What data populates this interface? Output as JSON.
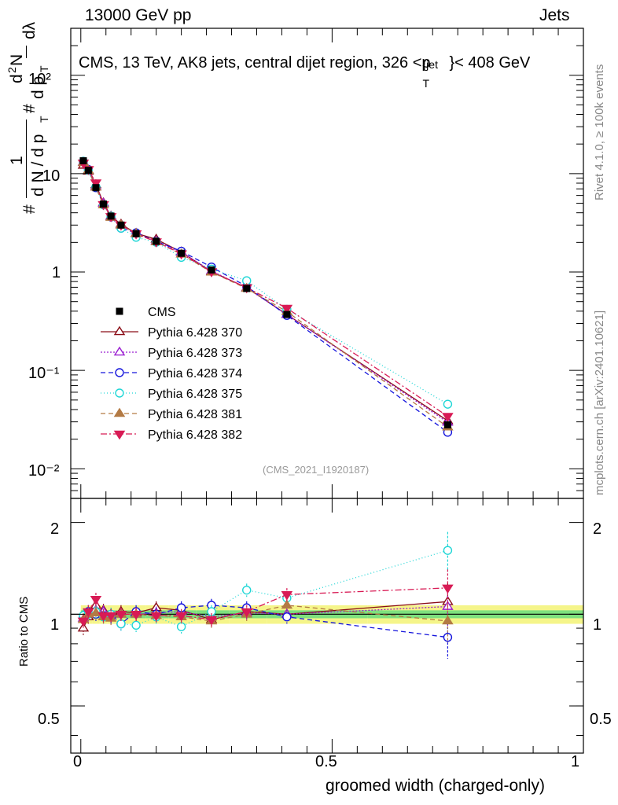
{
  "header": {
    "energy_label": "13000 GeV pp",
    "category_label": "Jets",
    "plot_title": "CMS, 13 TeV, AK8 jets, central dijet region, 326 <p",
    "plot_title_sup": "{jet",
    "plot_title_sub": "T",
    "plot_title_end": "}< 408 GeV",
    "rivet_label": "Rivet 4.1.0, ≥ 100k events",
    "mcplots_label": "mcplots.cern.ch [arXiv:2401.10621]",
    "analysis_id": "(CMS_2021_I1920187)"
  },
  "axes": {
    "xlabel": "groomed width (charged-only)",
    "main_ylabel_parts": [
      "#",
      "1",
      "d N / d p",
      "T",
      "#",
      "d p",
      "T",
      "d",
      "2",
      "N",
      "dλ"
    ],
    "ratio_ylabel": "Ratio to CMS",
    "x_ticks": [
      "0",
      "0.5",
      "1"
    ],
    "main_y_ticks": [
      "10⁻²",
      "10⁻¹",
      "1",
      "10",
      "10²"
    ],
    "ratio_y_ticks": [
      "0.5",
      "1",
      "2"
    ]
  },
  "chart_data": {
    "type": "scatter",
    "main": {
      "yscale": "log",
      "xlim": [
        -0.02,
        1.0
      ],
      "ylim": [
        0.005,
        300
      ]
    },
    "ratio": {
      "yscale": "log",
      "ylim": [
        0.35,
        2.4
      ],
      "band_inner_color": "#7ee07e",
      "band_outer_color": "#f5f58a"
    },
    "x": [
      0.005,
      0.015,
      0.03,
      0.045,
      0.06,
      0.08,
      0.11,
      0.15,
      0.2,
      0.26,
      0.33,
      0.41,
      0.73
    ],
    "data_name": "CMS",
    "data_values": [
      13.5,
      10.8,
      7.2,
      4.9,
      3.7,
      3.0,
      2.45,
      2.05,
      1.55,
      1.05,
      0.68,
      0.37,
      0.028
    ],
    "band_inner": [
      0.03,
      0.03,
      0.03,
      0.03,
      0.03,
      0.03,
      0.03,
      0.03,
      0.03,
      0.03,
      0.03,
      0.03,
      0.03
    ],
    "band_outer": [
      0.07,
      0.07,
      0.07,
      0.07,
      0.07,
      0.07,
      0.07,
      0.07,
      0.07,
      0.07,
      0.07,
      0.07,
      0.07
    ],
    "series": [
      {
        "name": "Pythia 6.428 370",
        "color": "#8b0e18",
        "marker": "triangle-open",
        "dash": "",
        "ratio": [
          0.9,
          0.98,
          1.07,
          1.03,
          1.0,
          1.02,
          1.01,
          1.05,
          1.03,
          0.96,
          1.02,
          1.0,
          1.1
        ]
      },
      {
        "name": "Pythia 6.428 373",
        "color": "#9b1fd1",
        "marker": "triangle-open",
        "dash": "2,2",
        "ratio": [
          0.97,
          1.0,
          1.03,
          1.02,
          0.99,
          1.0,
          1.0,
          1.01,
          1.02,
          0.98,
          1.01,
          1.0,
          1.06
        ]
      },
      {
        "name": "Pythia 6.428 374",
        "color": "#1414dc",
        "marker": "circle-open",
        "dash": "6,4",
        "ratio": [
          0.98,
          1.02,
          1.0,
          0.99,
          0.98,
          0.93,
          1.02,
          1.0,
          1.05,
          1.07,
          1.05,
          0.98,
          0.84
        ]
      },
      {
        "name": "Pythia 6.428 375",
        "color": "#1fd6d6",
        "marker": "circle-open",
        "dash": "1,3",
        "ratio": [
          0.99,
          1.0,
          1.02,
          0.98,
          1.0,
          0.93,
          0.92,
          0.98,
          0.91,
          1.02,
          1.2,
          1.13,
          1.62
        ]
      },
      {
        "name": "Pythia 6.428 381",
        "color": "#b37a44",
        "marker": "triangle-filled",
        "dash": "6,4",
        "ratio": [
          0.96,
          1.0,
          1.01,
          0.98,
          0.97,
          1.0,
          1.0,
          0.99,
          0.98,
          0.95,
          1.0,
          1.07,
          0.95
        ]
      },
      {
        "name": "Pythia 6.428 382",
        "color": "#d81b55",
        "marker": "triangledown-filled",
        "dash": "8,3,2,3",
        "ratio": [
          0.95,
          1.02,
          1.12,
          0.99,
          0.99,
          1.0,
          1.0,
          0.99,
          0.99,
          0.96,
          1.02,
          1.16,
          1.22
        ]
      }
    ]
  }
}
